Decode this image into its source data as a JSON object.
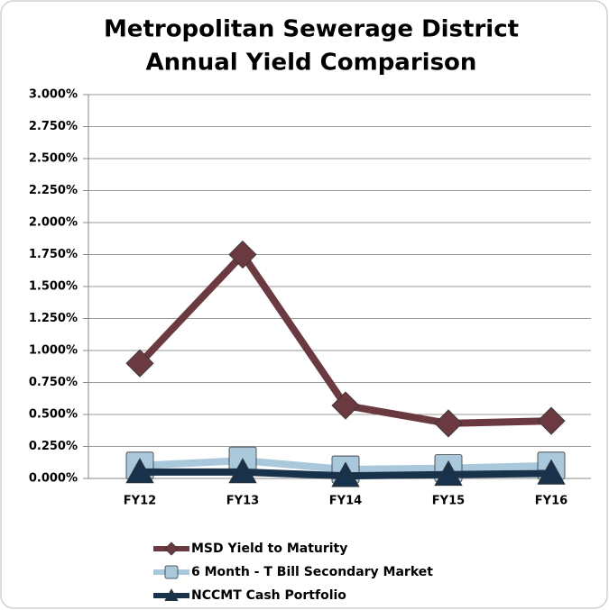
{
  "chart_data": {
    "type": "line",
    "title": [
      "Metropolitan Sewerage District",
      "Annual Yield Comparison"
    ],
    "categories": [
      "FY12",
      "FY13",
      "FY14",
      "FY15",
      "FY16"
    ],
    "series": [
      {
        "name": "MSD Yield to Maturity",
        "color": "#6b3a40",
        "marker": "diamond",
        "values": [
          0.9,
          1.75,
          0.57,
          0.43,
          0.45
        ]
      },
      {
        "name": "6 Month - T Bill Secondary Market",
        "color": "#a9c8dc",
        "marker": "square",
        "values": [
          0.1,
          0.14,
          0.07,
          0.08,
          0.1
        ]
      },
      {
        "name": "NCCMT Cash Portfolio",
        "color": "#17324a",
        "marker": "triangle",
        "values": [
          0.05,
          0.05,
          0.02,
          0.03,
          0.04
        ]
      }
    ],
    "ylim": [
      0,
      3
    ],
    "yticks": [
      {
        "value": 0,
        "label": "0.000%"
      },
      {
        "value": 0.25,
        "label": "0.250%"
      },
      {
        "value": 0.5,
        "label": "0.500%"
      },
      {
        "value": 0.75,
        "label": "0.750%"
      },
      {
        "value": 1,
        "label": "1.000%"
      },
      {
        "value": 1.25,
        "label": "1.250%"
      },
      {
        "value": 1.5,
        "label": "1.500%"
      },
      {
        "value": 1.75,
        "label": "1.750%"
      },
      {
        "value": 2,
        "label": "2.000%"
      },
      {
        "value": 2.25,
        "label": "2.250%"
      },
      {
        "value": 2.5,
        "label": "2.500%"
      },
      {
        "value": 2.75,
        "label": "2.750%"
      },
      {
        "value": 3,
        "label": "3.000%"
      }
    ],
    "grid": true,
    "legend": "bottom"
  }
}
